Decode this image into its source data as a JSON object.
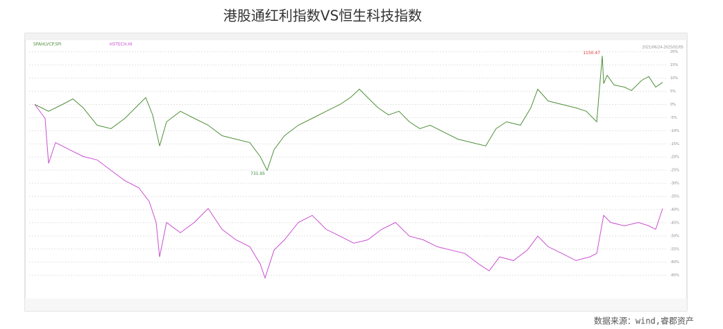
{
  "chart_data": {
    "type": "line",
    "title": "港股通红利指数VS恒生科技指数",
    "source": "数据来源：wind,睿郡资产",
    "date_range": "2021/06/24-2025/02/05",
    "annotations": [
      "1150.47",
      "731.95"
    ],
    "xlim": [
      0,
      910
    ],
    "ylim": [
      -68,
      26
    ],
    "yticks": [
      {
        "value": 20,
        "label": "20%"
      },
      {
        "value": 15,
        "label": "15%"
      },
      {
        "value": 10,
        "label": "10%"
      },
      {
        "value": 5,
        "label": "5%"
      },
      {
        "value": 0,
        "label": "0%"
      },
      {
        "value": -5,
        "label": "-5%"
      },
      {
        "value": -10,
        "label": "-10%"
      },
      {
        "value": -15,
        "label": "-15%"
      },
      {
        "value": -20,
        "label": "-20%"
      },
      {
        "value": -25,
        "label": "-25%"
      },
      {
        "value": -30,
        "label": "-30%"
      },
      {
        "value": -35,
        "label": "-35%"
      },
      {
        "value": -40,
        "label": "-40%"
      },
      {
        "value": -45,
        "label": "-45%"
      },
      {
        "value": -50,
        "label": "-50%"
      },
      {
        "value": -55,
        "label": "-55%"
      },
      {
        "value": -60,
        "label": "-60%"
      },
      {
        "value": -65,
        "label": "-65%"
      }
    ],
    "grid": true,
    "series": [
      {
        "name": "SPAHLVCP.SPI",
        "color": "#4f8f3a",
        "x": [
          0,
          20,
          40,
          55,
          70,
          90,
          110,
          130,
          150,
          160,
          170,
          180,
          190,
          210,
          230,
          250,
          270,
          290,
          310,
          325,
          335,
          345,
          360,
          380,
          400,
          420,
          440,
          455,
          468,
          480,
          495,
          510,
          525,
          540,
          555,
          570,
          590,
          610,
          630,
          650,
          665,
          680,
          700,
          715,
          725,
          740,
          760,
          780,
          795,
          810,
          818,
          820,
          825,
          835,
          850,
          860,
          875,
          885,
          895,
          905
        ],
        "values": [
          0,
          -2.6,
          0,
          2.1,
          -1.3,
          -7.9,
          -9.2,
          -5.3,
          0,
          2.6,
          -4.0,
          -15.8,
          -6.6,
          -2.6,
          -5.3,
          -7.9,
          -11.9,
          -13.2,
          -14.5,
          -19.8,
          -25.1,
          -17.2,
          -11.9,
          -7.9,
          -5.3,
          -2.6,
          0,
          2.6,
          5.8,
          2.6,
          -1.3,
          -4.0,
          -2.6,
          -6.6,
          -9.2,
          -7.9,
          -10.6,
          -13.2,
          -14.5,
          -15.8,
          -9.2,
          -6.6,
          -7.9,
          -1.3,
          5.8,
          1.3,
          0,
          -1.3,
          -2.6,
          -6.6,
          18.5,
          7.9,
          11.1,
          7.4,
          6.6,
          5.3,
          9.2,
          10.6,
          6.6,
          8.4
        ]
      },
      {
        "name": "HSTECH.HI",
        "color": "#c94fd0",
        "x": [
          0,
          15,
          20,
          30,
          50,
          70,
          90,
          110,
          130,
          150,
          165,
          175,
          180,
          190,
          210,
          230,
          250,
          270,
          290,
          310,
          325,
          332,
          345,
          360,
          380,
          400,
          420,
          440,
          460,
          480,
          500,
          520,
          540,
          560,
          580,
          600,
          620,
          640,
          655,
          670,
          690,
          710,
          725,
          740,
          760,
          780,
          800,
          810,
          820,
          830,
          850,
          870,
          885,
          895,
          905
        ],
        "values": [
          0,
          -5.3,
          -22.4,
          -14.5,
          -17.2,
          -19.8,
          -21.1,
          -25.1,
          -29.0,
          -31.7,
          -36.9,
          -44.9,
          -58.0,
          -44.9,
          -48.8,
          -44.9,
          -39.6,
          -47.5,
          -51.5,
          -54.1,
          -60.7,
          -66.0,
          -55.4,
          -51.5,
          -44.9,
          -42.2,
          -47.5,
          -50.1,
          -52.8,
          -51.5,
          -47.5,
          -44.9,
          -50.1,
          -51.5,
          -54.1,
          -55.4,
          -56.7,
          -60.7,
          -63.3,
          -58.0,
          -59.4,
          -55.4,
          -50.1,
          -54.1,
          -56.7,
          -59.4,
          -58.0,
          -56.7,
          -42.2,
          -44.9,
          -46.2,
          -44.9,
          -46.2,
          -47.5,
          -39.6
        ]
      }
    ]
  }
}
